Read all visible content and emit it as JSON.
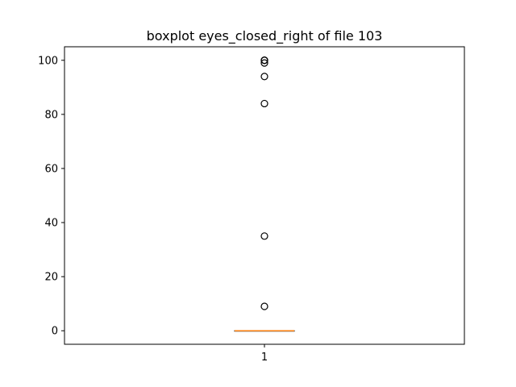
{
  "chart_data": {
    "type": "boxplot",
    "title": "boxplot eyes_closed_right of file 103",
    "xlabel": "",
    "ylabel": "",
    "categories": [
      "1"
    ],
    "ylim": [
      -5,
      105
    ],
    "yticks": [
      0,
      20,
      40,
      60,
      80,
      100
    ],
    "boxes": [
      {
        "category": "1",
        "whisker_low": 0,
        "q1": 0,
        "median": 0,
        "q3": 0,
        "whisker_high": 0,
        "outliers": [
          9,
          35,
          84,
          94,
          99,
          100,
          100,
          100
        ]
      }
    ],
    "grid": false,
    "colors": {
      "median": "#ff7f0e",
      "box": "#000000",
      "outlier": "#000000"
    }
  }
}
